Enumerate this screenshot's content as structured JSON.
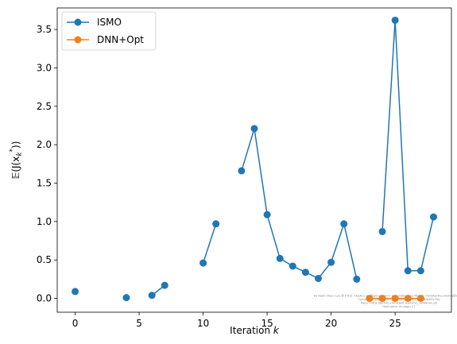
{
  "chart_data": {
    "type": "line",
    "title": "",
    "xlabel": "Iteration $k$",
    "ylabel": "$\\mathbb{E}(J(x_k^*))$",
    "xlabel_text": "Iteration ",
    "xlabel_var": "k",
    "ylabel_prefix": "𝔼(J(x",
    "ylabel_sub": "k",
    "ylabel_sup": "*",
    "ylabel_suffix": "))",
    "xlim": [
      -1.4,
      29.4
    ],
    "ylim": [
      -0.18,
      3.78
    ],
    "xticks": [
      0,
      5,
      10,
      15,
      20,
      25
    ],
    "xtick_labels": [
      "0",
      "5",
      "10",
      "15",
      "20",
      "25"
    ],
    "yticks": [
      0.0,
      0.5,
      1.0,
      1.5,
      2.0,
      2.5,
      3.0,
      3.5
    ],
    "ytick_labels": [
      "0.0",
      "0.5",
      "1.0",
      "1.5",
      "2.0",
      "2.5",
      "3.0",
      "3.5"
    ],
    "grid": false,
    "legend_position": "top-left",
    "series": [
      {
        "name": "ISMO",
        "color": "#1f77b4",
        "segments": [
          [
            [
              0,
              0.09
            ]
          ],
          [
            [
              4,
              0.01
            ]
          ],
          [
            [
              6,
              0.04
            ],
            [
              7,
              0.17
            ]
          ],
          [
            [
              10,
              0.46
            ],
            [
              11,
              0.97
            ]
          ],
          [
            [
              13,
              1.66
            ],
            [
              14,
              2.21
            ],
            [
              15,
              1.09
            ],
            [
              16,
              0.52
            ],
            [
              17,
              0.42
            ],
            [
              18,
              0.34
            ],
            [
              19,
              0.26
            ],
            [
              20,
              0.47
            ],
            [
              21,
              0.97
            ],
            [
              22,
              0.25
            ]
          ],
          [
            [
              24,
              0.87
            ],
            [
              25,
              3.62
            ],
            [
              26,
              0.36
            ],
            [
              27,
              0.36
            ],
            [
              28,
              1.06
            ]
          ]
        ]
      },
      {
        "name": "DNN+Opt",
        "color": "#ff7f0e",
        "segments": [
          [
            [
              23,
              0.0
            ],
            [
              24,
              0.0
            ],
            [
              25,
              0.0
            ],
            [
              26,
              0.0
            ],
            [
              27,
              0.0
            ]
          ]
        ]
      }
    ],
    "watermark_lines": [
      "By Kjetil Olsen Lye @ ETHZ <kjetil.o.lye@gmail.com> and Siddhartha Mishra <siddhartha.mishra@sam.math.ethz.ch>",
      "Commit: 1c5ab9f0c1b77d6e0b67b9a8cc3dd03fb4f5c7ee",
      "Repo: https://github.com/kjetil-lye/ismo_validation.git",
      "Hostname: eu-login-27"
    ]
  }
}
